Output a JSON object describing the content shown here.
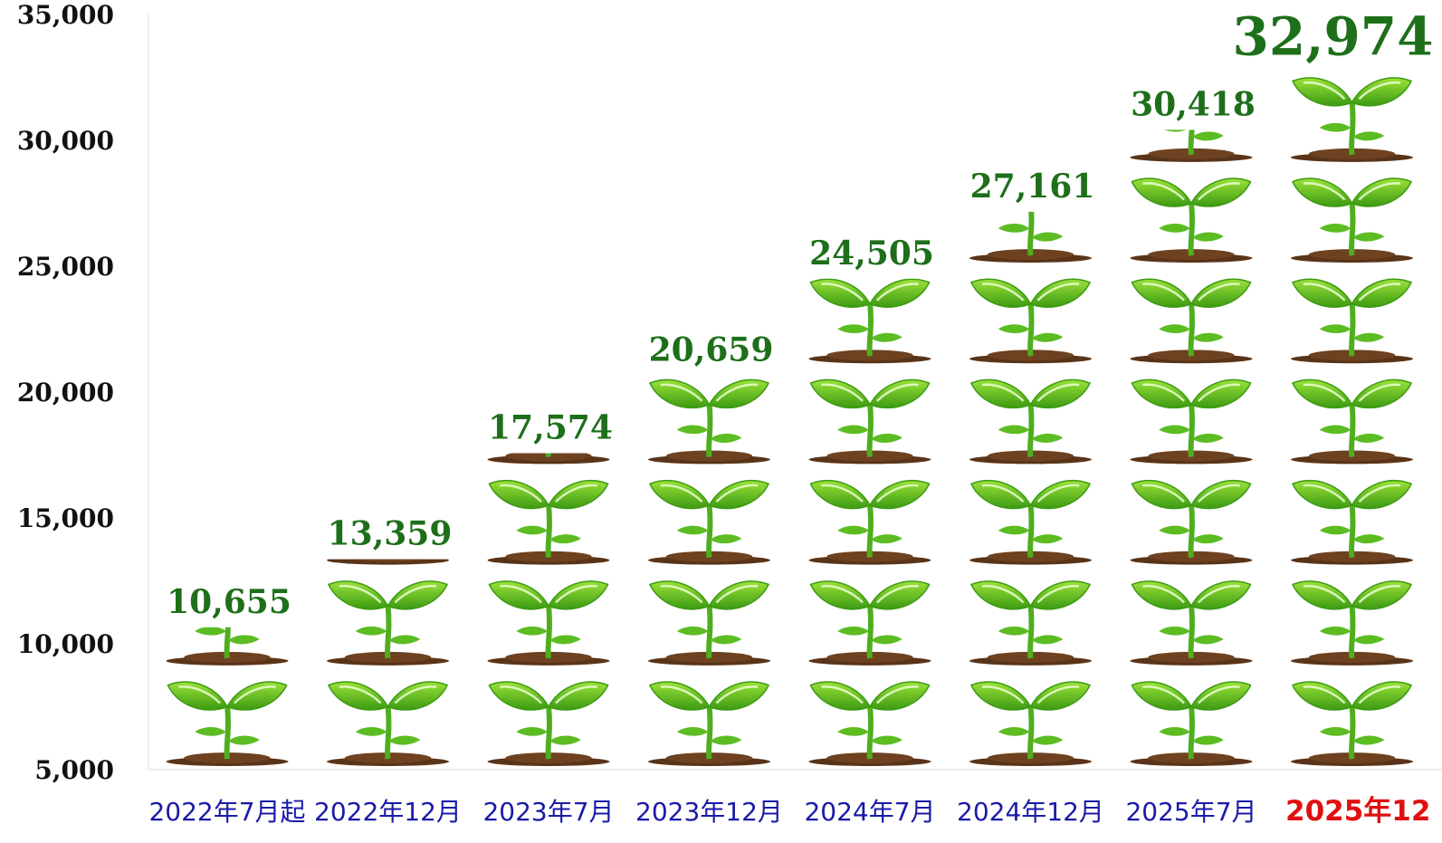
{
  "chart_data": {
    "type": "bar",
    "categories": [
      "2022年7月起",
      "2022年12月",
      "2023年7月",
      "2023年12月",
      "2024年7月",
      "2024年12月",
      "2025年7月",
      "2025年12"
    ],
    "values": [
      10655,
      13359,
      17574,
      20659,
      24505,
      27161,
      30418,
      32974
    ],
    "data_labels": [
      "10,655",
      "13,359",
      "17,574",
      "20,659",
      "24,505",
      "27,161",
      "30,418",
      "32,974"
    ],
    "title": "",
    "xlabel": "",
    "ylabel": "",
    "ylim": [
      5000,
      35000
    ],
    "yticks": [
      5000,
      10000,
      15000,
      20000,
      25000,
      30000,
      35000
    ],
    "ytick_labels": [
      "5,000",
      "10,000",
      "15,000",
      "20,000",
      "25,000",
      "30,000",
      "35,000"
    ],
    "highlight_index": 7,
    "mark_style": "stacked-seedling-pictograph",
    "pictogram_unit": 4000,
    "grid": false,
    "legend": "none",
    "colors": {
      "data_label": "#1e6f1a",
      "category_label": "#1a1aa8",
      "highlight_label": "#e01010",
      "leaf_light": "#9be23a",
      "leaf_dark": "#3c9a12",
      "soil": "#5a3418",
      "axis": "#e6e6e6"
    }
  }
}
